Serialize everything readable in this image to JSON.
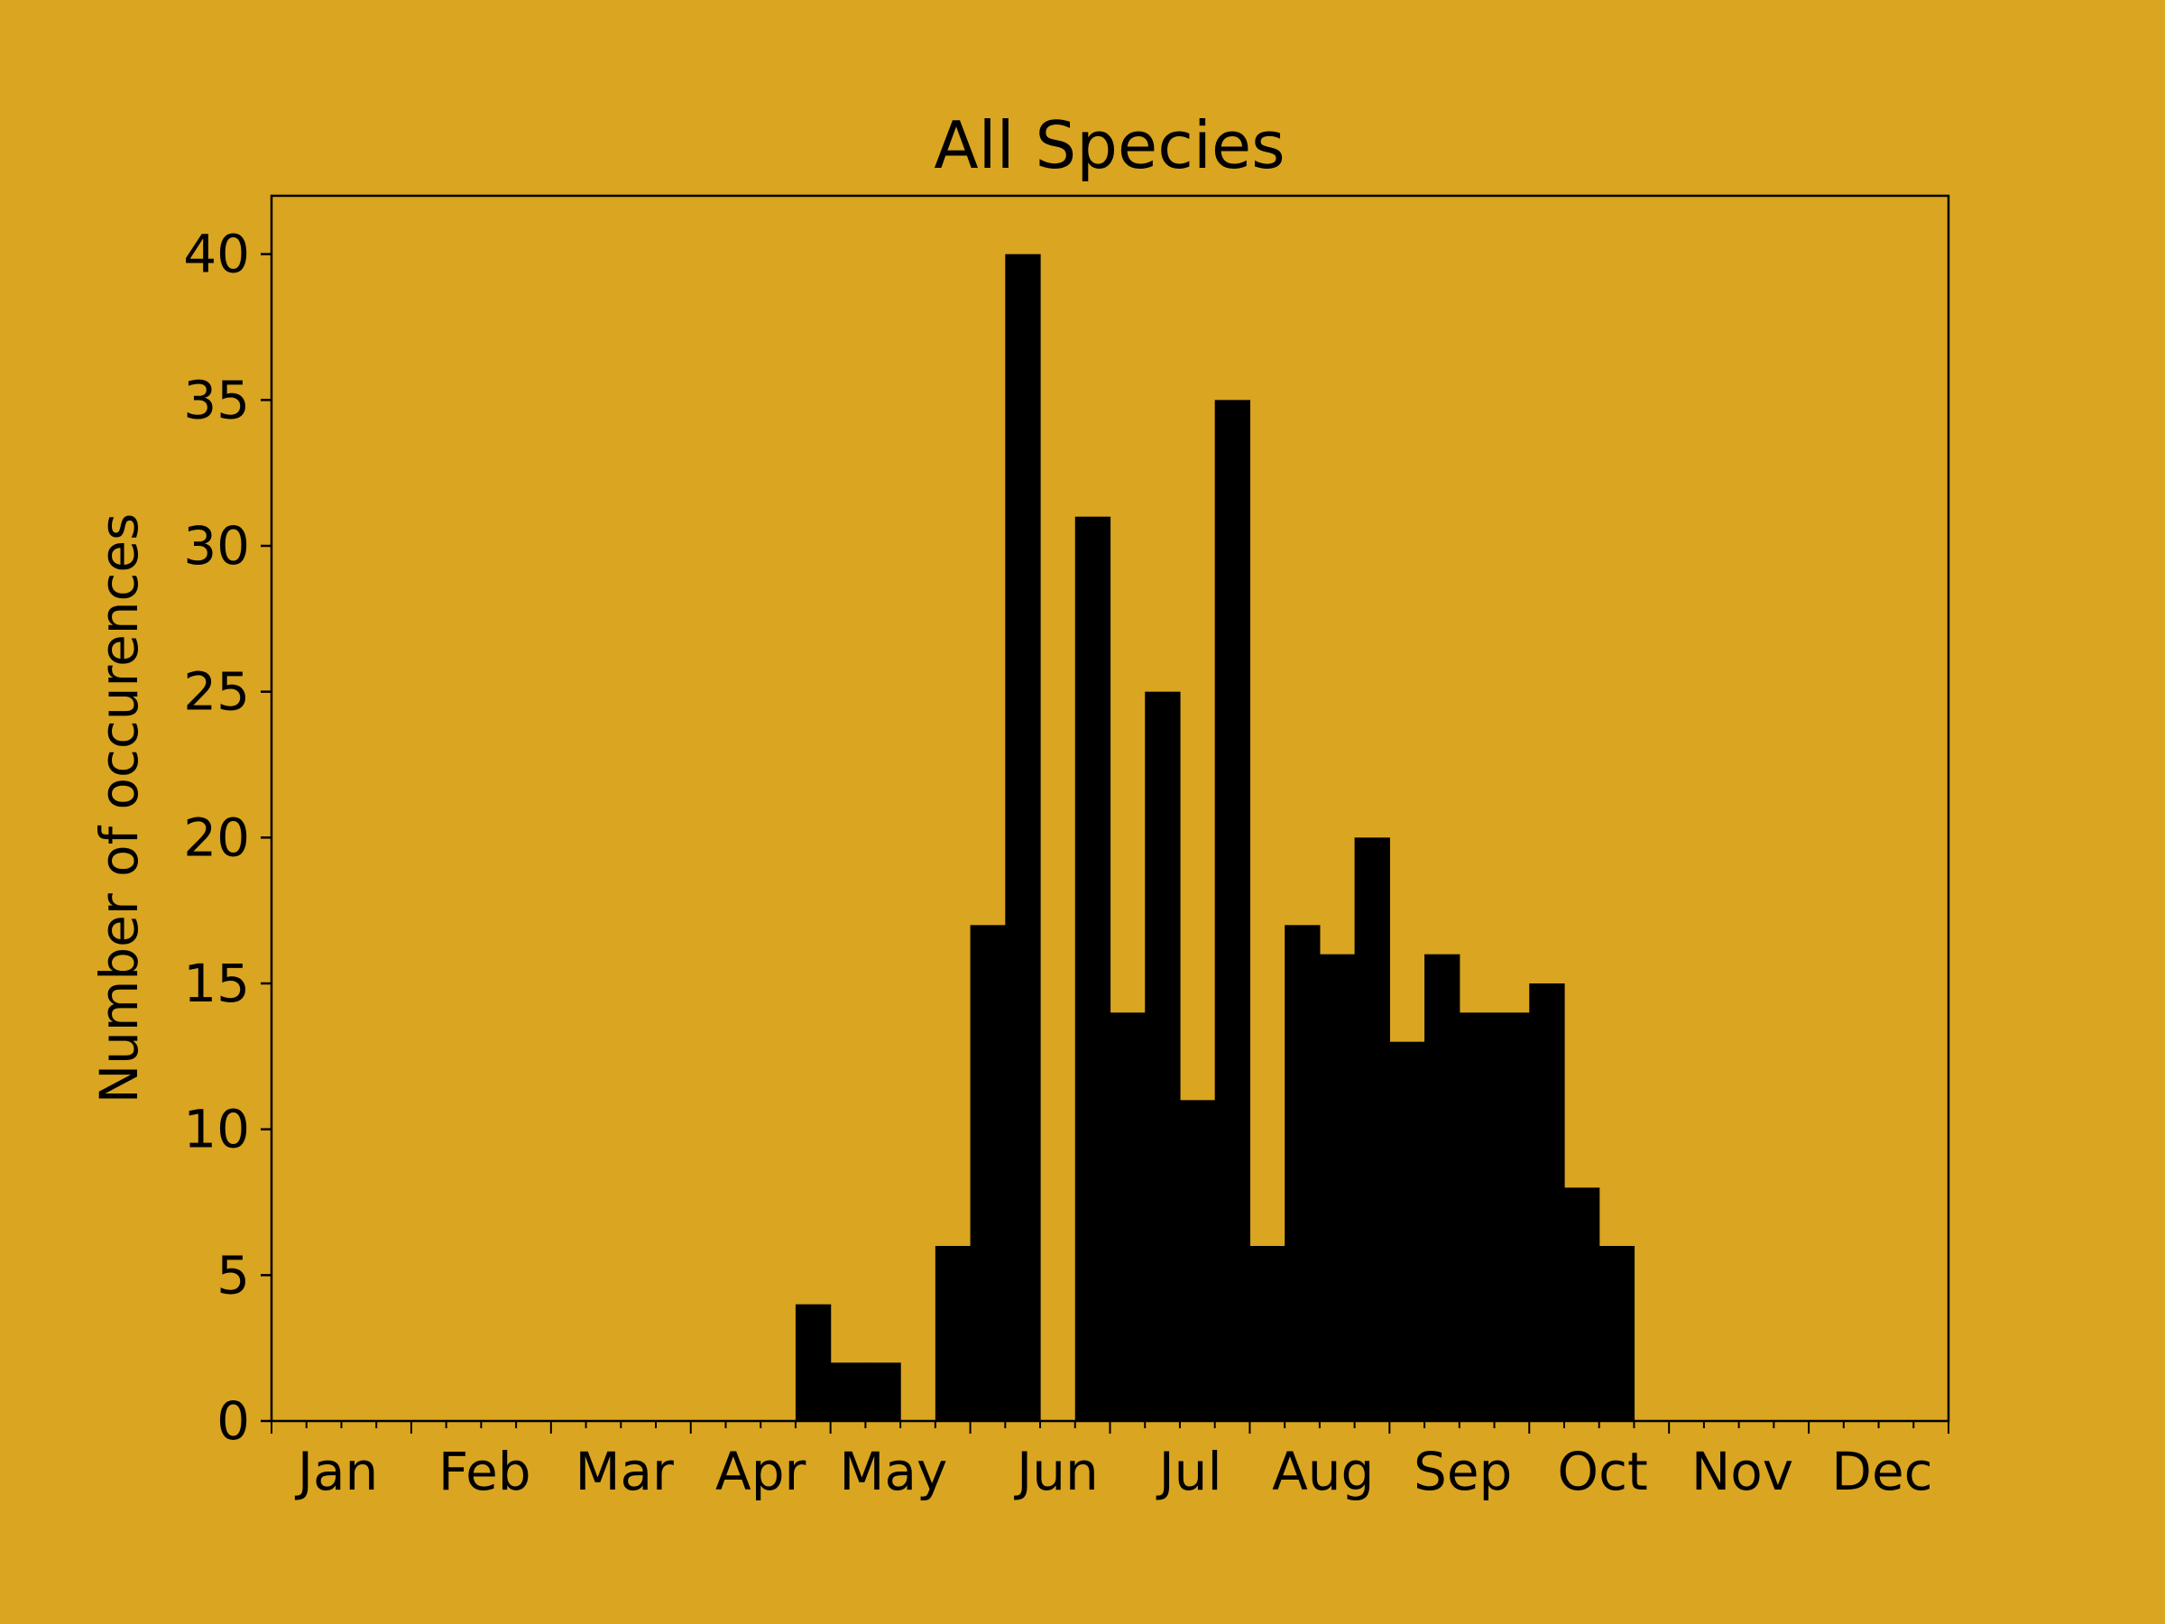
{
  "chart_data": {
    "type": "bar",
    "title": "All Species",
    "xlabel": "",
    "ylabel": "Number of occurences",
    "background_color": "#DAA520",
    "bar_color": "#000000",
    "bin_width": 1,
    "x_range": [
      0,
      48
    ],
    "xlim": [
      0,
      48
    ],
    "ylim": [
      0,
      42
    ],
    "y_ticks": [
      0,
      5,
      10,
      15,
      20,
      25,
      30,
      35,
      40
    ],
    "grid": false,
    "months": [
      "Jan",
      "Feb",
      "Mar",
      "Apr",
      "May",
      "Jun",
      "Jul",
      "Aug",
      "Sep",
      "Oct",
      "Nov",
      "Dec"
    ],
    "month_label_positions": [
      1.9,
      6.1,
      10.1,
      14.0,
      17.8,
      22.5,
      26.3,
      30.1,
      34.1,
      38.1,
      42.1,
      46.1
    ],
    "bins": [
      {
        "start": 15,
        "value": 4
      },
      {
        "start": 16,
        "value": 2
      },
      {
        "start": 17,
        "value": 2
      },
      {
        "start": 18,
        "value": 0
      },
      {
        "start": 19,
        "value": 6
      },
      {
        "start": 20,
        "value": 17
      },
      {
        "start": 21,
        "value": 40
      },
      {
        "start": 22,
        "value": 0
      },
      {
        "start": 23,
        "value": 31
      },
      {
        "start": 24,
        "value": 14
      },
      {
        "start": 25,
        "value": 25
      },
      {
        "start": 26,
        "value": 11
      },
      {
        "start": 27,
        "value": 35
      },
      {
        "start": 28,
        "value": 6
      },
      {
        "start": 29,
        "value": 17
      },
      {
        "start": 30,
        "value": 16
      },
      {
        "start": 31,
        "value": 20
      },
      {
        "start": 32,
        "value": 13
      },
      {
        "start": 33,
        "value": 16
      },
      {
        "start": 34,
        "value": 14
      },
      {
        "start": 35,
        "value": 14
      },
      {
        "start": 36,
        "value": 15
      },
      {
        "start": 37,
        "value": 8
      },
      {
        "start": 38,
        "value": 6
      }
    ]
  }
}
